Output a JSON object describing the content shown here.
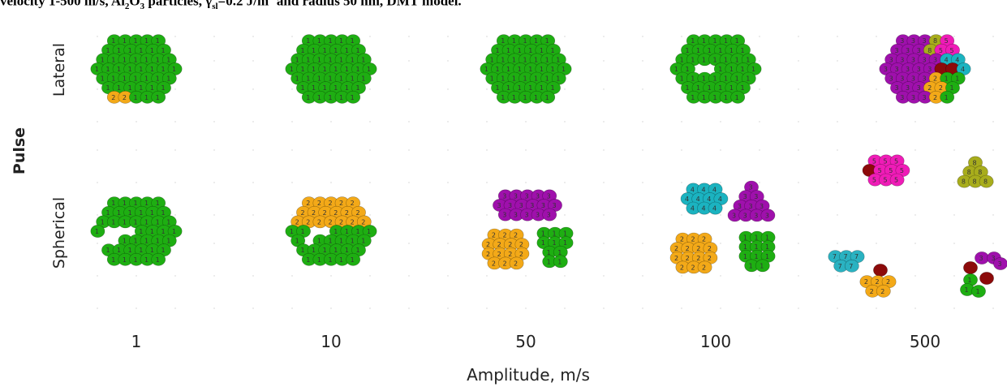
{
  "caption": {
    "part1": "velocity 1-500 m/s, Al",
    "sub1": "2",
    "part2": "O",
    "sub2": "3",
    "part3": " particles, γ",
    "sub3": "sl",
    "part4": "=0.2 J/m",
    "sup1": "2",
    "part5": " and radius 50 nm, DMT model."
  },
  "axes": {
    "y_title": "Pulse",
    "rows": [
      "Lateral",
      "Spherical"
    ],
    "columns": [
      "1",
      "10",
      "50",
      "100",
      "500"
    ],
    "x_title": "Amplitude, m/s"
  },
  "fragment_colors": {
    "1": "#1eae12",
    "2": "#f3a918",
    "3": "#9f10ac",
    "4": "#1bb3c0",
    "5": "#ef1cb7",
    "6": "#8c0a0a",
    "7": "#2ab2c1",
    "8": "#a8ad1c"
  }
}
